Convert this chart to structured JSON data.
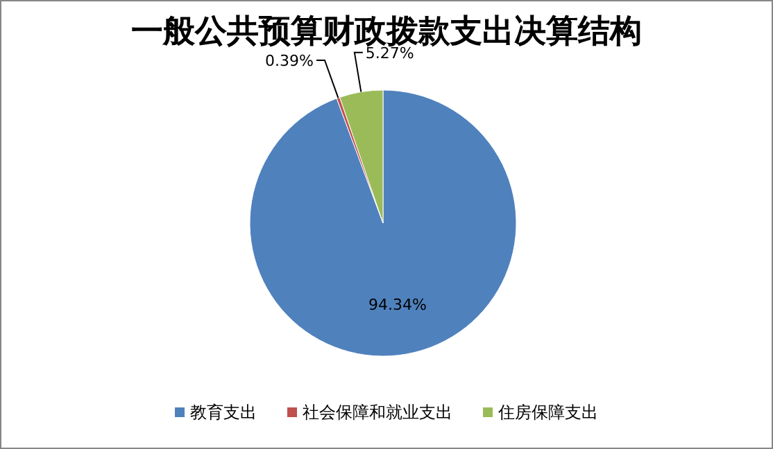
{
  "chart_data": {
    "type": "pie",
    "title": "一般公共预算财政拨款支出决算结构",
    "categories": [
      "教育支出",
      "社会保障和就业支出",
      "住房保障支出"
    ],
    "values": [
      94.34,
      0.39,
      5.27
    ],
    "colors": [
      "#4f81bd",
      "#c0504d",
      "#9bbb59"
    ],
    "value_labels": [
      "94.34%",
      "0.39%",
      "5.27%"
    ],
    "legend": "bottom"
  }
}
